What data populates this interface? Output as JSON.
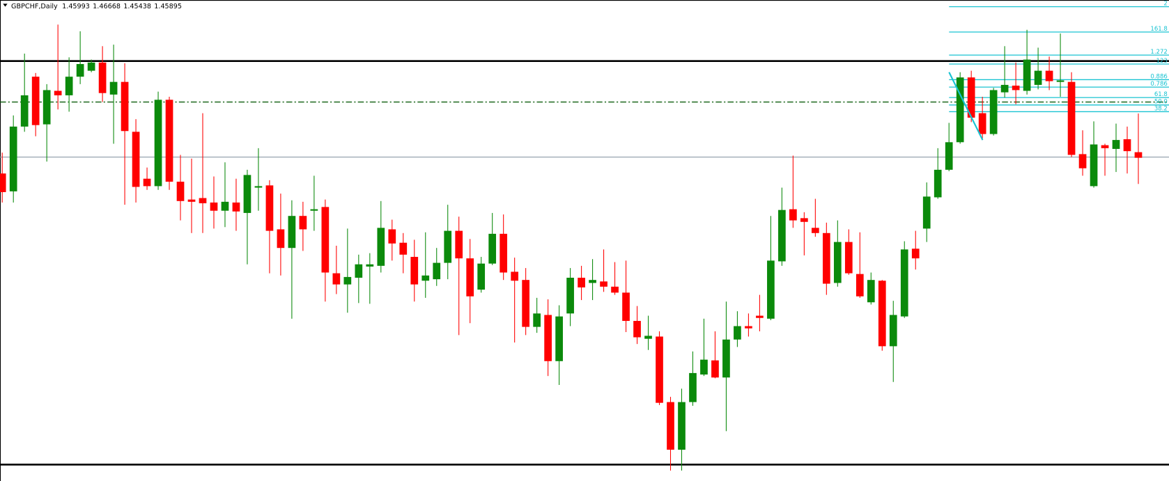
{
  "chart_data": {
    "type": "candlestick",
    "symbol": "GBPCHF,Daily",
    "up_color": "#0b8a0b",
    "down_color": "#ff0000",
    "ylim": [
      1.40252,
      1.4865
    ],
    "open": [
      1.45621,
      1.45309,
      1.4644,
      1.47311,
      1.46479,
      1.47064,
      1.46986,
      1.47311,
      1.47415,
      1.47558,
      1.46999,
      1.4722,
      1.46349,
      1.4553,
      1.454,
      1.46908,
      1.45478,
      1.45166,
      1.45192,
      1.45114,
      1.44971,
      1.45114,
      1.44932,
      1.45374,
      1.45413,
      1.44646,
      1.44321,
      1.4488,
      1.44971,
      1.45036,
      1.43879,
      1.43684,
      1.43801,
      1.43996,
      1.44009,
      1.44646,
      1.44412,
      1.44165,
      1.43749,
      1.43775,
      1.44061,
      1.4462,
      1.44139,
      1.43593,
      1.44048,
      1.44568,
      1.43905,
      1.43762,
      1.42943,
      1.43151,
      1.42345,
      1.43177,
      1.43801,
      1.4371,
      1.43736,
      1.43645,
      1.43541,
      1.43047,
      1.42735,
      1.42774,
      1.4163,
      1.40798,
      1.4163,
      1.42111,
      1.42358,
      1.42059,
      1.42722,
      1.42956,
      1.43138,
      1.43086,
      1.44087,
      1.44997,
      1.44841,
      1.44672,
      1.44581,
      1.4371,
      1.44425,
      1.43866,
      1.43372,
      1.43749,
      1.42605,
      1.43125,
      1.44308,
      1.44659,
      1.45205,
      1.45686,
      1.46167,
      1.47298,
      1.46674,
      1.4631,
      1.47038,
      1.47155,
      1.47064,
      1.47168,
      1.47415,
      1.4722,
      1.4722,
      1.45959,
      1.454,
      1.46115,
      1.4605,
      1.46219,
      1.45993
    ],
    "high": [
      1.45985,
      1.46635,
      1.47714,
      1.47376,
      1.47181,
      1.48221,
      1.47649,
      1.48104,
      1.4761,
      1.47844,
      1.4787,
      1.47545,
      1.4657,
      1.45725,
      1.47051,
      1.4696,
      1.45946,
      1.45881,
      1.46674,
      1.45569,
      1.45816,
      1.4553,
      1.45686,
      1.46063,
      1.45504,
      1.4527,
      1.45153,
      1.45127,
      1.45582,
      1.45166,
      1.4436,
      1.44659,
      1.44204,
      1.4423,
      1.4514,
      1.44815,
      1.44581,
      1.44464,
      1.44594,
      1.44321,
      1.45075,
      1.44867,
      1.44477,
      1.44165,
      1.44932,
      1.44906,
      1.44152,
      1.4397,
      1.4345,
      1.43424,
      1.4332,
      1.4397,
      1.44009,
      1.44126,
      1.44295,
      1.44074,
      1.441,
      1.43307,
      1.43138,
      1.42865,
      1.41721,
      1.41864,
      1.42514,
      1.43086,
      1.42865,
      1.43385,
      1.43216,
      1.43177,
      1.43502,
      1.4488,
      1.45374,
      1.45933,
      1.44945,
      1.45179,
      1.44763,
      1.44802,
      1.44646,
      1.44594,
      1.43892,
      1.43762,
      1.43398,
      1.44438,
      1.4462,
      1.45465,
      1.46063,
      1.46505,
      1.47389,
      1.47415,
      1.4696,
      1.47116,
      1.47844,
      1.47558,
      1.4813,
      1.47818,
      1.47662,
      1.48065,
      1.47389,
      1.46375,
      1.46531,
      1.46141,
      1.46492,
      1.4644,
      1.46668
    ],
    "low": [
      1.45114,
      1.45114,
      1.46349,
      1.46271,
      1.45829,
      1.46739,
      1.467,
      1.47181,
      1.47389,
      1.46869,
      1.46141,
      1.45075,
      1.45114,
      1.45335,
      1.45335,
      1.45335,
      1.44802,
      1.44581,
      1.44581,
      1.44659,
      1.44685,
      1.4462,
      1.44035,
      1.44971,
      1.43879,
      1.4384,
      1.43086,
      1.44269,
      1.4462,
      1.43385,
      1.43515,
      1.4319,
      1.43359,
      1.43346,
      1.43892,
      1.441,
      1.43879,
      1.43385,
      1.4345,
      1.43658,
      1.43775,
      1.428,
      1.43008,
      1.43541,
      1.44022,
      1.43762,
      1.4267,
      1.428,
      1.42839,
      1.42085,
      1.41929,
      1.42956,
      1.43411,
      1.43411,
      1.43554,
      1.43502,
      1.42852,
      1.42644,
      1.4254,
      1.41578,
      1.40434,
      1.40434,
      1.41565,
      1.42085,
      1.42046,
      1.41123,
      1.42592,
      1.42774,
      1.42865,
      1.4306,
      1.44009,
      1.44672,
      1.44191,
      1.44516,
      1.43502,
      1.43645,
      1.43853,
      1.4345,
      1.43333,
      1.42527,
      1.41981,
      1.43099,
      1.43944,
      1.44425,
      1.45179,
      1.4566,
      1.46141,
      1.46518,
      1.46206,
      1.46284,
      1.46947,
      1.4683,
      1.46999,
      1.4709,
      1.47077,
      1.4696,
      1.45907,
      1.45582,
      1.45374,
      1.45582,
      1.45647,
      1.45621,
      1.45438
    ],
    "close": [
      1.45296,
      1.4644,
      1.46986,
      1.46466,
      1.47077,
      1.46986,
      1.47311,
      1.47532,
      1.47558,
      1.47025,
      1.4722,
      1.46362,
      1.45387,
      1.454,
      1.46908,
      1.45478,
      1.4514,
      1.45127,
      1.45101,
      1.44971,
      1.45127,
      1.44958,
      1.45595,
      1.454,
      1.4462,
      1.44321,
      1.4488,
      1.44646,
      1.44997,
      1.43892,
      1.43684,
      1.43814,
      1.44035,
      1.44035,
      1.44672,
      1.44399,
      1.44204,
      1.43684,
      1.4384,
      1.44061,
      1.4462,
      1.44139,
      1.43476,
      1.44048,
      1.44568,
      1.43892,
      1.43749,
      1.42943,
      1.43177,
      1.42345,
      1.43125,
      1.43801,
      1.43632,
      1.43762,
      1.43645,
      1.43541,
      1.43047,
      1.42761,
      1.42787,
      1.41617,
      1.40798,
      1.4163,
      1.42137,
      1.42371,
      1.42059,
      1.42722,
      1.42956,
      1.42917,
      1.43099,
      1.441,
      1.44984,
      1.44802,
      1.44776,
      1.44581,
      1.43697,
      1.44425,
      1.43879,
      1.43476,
      1.43762,
      1.42605,
      1.43151,
      1.44295,
      1.44139,
      1.45218,
      1.45686,
      1.46167,
      1.47298,
      1.46596,
      1.4631,
      1.47077,
      1.47168,
      1.47077,
      1.4761,
      1.47415,
      1.47233,
      1.47246,
      1.45946,
      1.45712,
      1.46128,
      1.46063,
      1.46206,
      1.46011,
      1.45895
    ],
    "hlines": [
      {
        "value": 1.47584,
        "color": "#000000",
        "width": 2.5,
        "dash": ""
      },
      {
        "value": 1.40538,
        "color": "#000000",
        "width": 2.5,
        "dash": ""
      },
      {
        "value": 1.45907,
        "color": "#8a9aa6",
        "width": 1,
        "dash": ""
      },
      {
        "value": 1.46869,
        "color": "#0a5c0a",
        "width": 1.3,
        "dash": "8 3 2 3"
      }
    ],
    "fib_color": "#19c3d2",
    "fib_levels": [
      {
        "value": 1.48533,
        "label": "2"
      },
      {
        "value": 1.48091,
        "label": "161.8"
      },
      {
        "value": 1.47688,
        "label": "1.272"
      },
      {
        "value": 1.47532,
        "label": "123"
      },
      {
        "value": 1.47259,
        "label": "0.886"
      },
      {
        "value": 1.47129,
        "label": "0.786"
      },
      {
        "value": 1.46947,
        "label": "61.8"
      },
      {
        "value": 1.46817,
        "label": "50.0"
      },
      {
        "value": 1.467,
        "label": "38.2"
      }
    ]
  }
}
